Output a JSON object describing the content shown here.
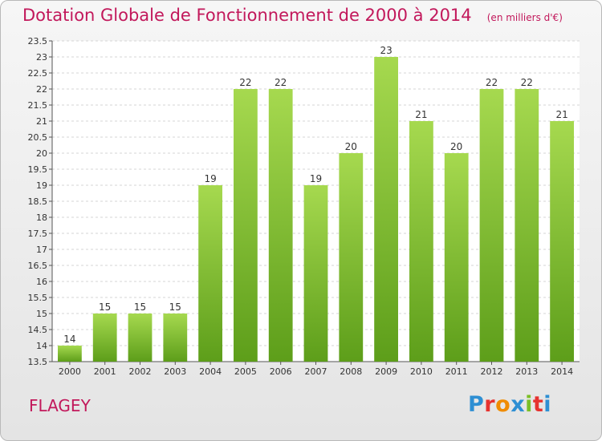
{
  "title": "Dotation Globale de Fonctionnement de 2000 à 2014",
  "unit_note": "(en milliers d'€)",
  "commune": "FLAGEY",
  "logo": {
    "letters": [
      "P",
      "r",
      "o",
      "x",
      "i",
      "t",
      "i"
    ],
    "colors": [
      "#2e8fd3",
      "#e6322f",
      "#f08c00",
      "#2e8fd3",
      "#7bbf26",
      "#e6322f",
      "#2e8fd3"
    ]
  },
  "colors": {
    "bar_light": "#a6d94f",
    "bar_dark": "#5d9e1a",
    "accent": "#c2185b"
  },
  "chart_data": {
    "type": "bar",
    "title": "Dotation Globale de Fonctionnement de 2000 à 2014",
    "subtitle": "(en milliers d'€)",
    "xlabel": "",
    "ylabel": "",
    "categories": [
      "2000",
      "2001",
      "2002",
      "2003",
      "2004",
      "2005",
      "2006",
      "2007",
      "2008",
      "2009",
      "2010",
      "2011",
      "2012",
      "2013",
      "2014"
    ],
    "values": [
      14,
      15,
      15,
      15,
      19,
      22,
      22,
      19,
      20,
      23,
      21,
      20,
      22,
      22,
      21
    ],
    "data_labels": [
      "14",
      "15",
      "15",
      "15",
      "19",
      "22",
      "22",
      "19",
      "20",
      "23",
      "21",
      "20",
      "22",
      "22",
      "21"
    ],
    "ylim": [
      13.5,
      23.5
    ],
    "y_ticks": [
      "13.5",
      "14",
      "14.5",
      "15",
      "15.5",
      "16",
      "16.5",
      "17",
      "17.5",
      "18",
      "18.5",
      "19",
      "19.5",
      "20",
      "20.5",
      "21",
      "21.5",
      "22",
      "22.5",
      "23",
      "23.5"
    ],
    "grid": true,
    "legend": "none"
  }
}
